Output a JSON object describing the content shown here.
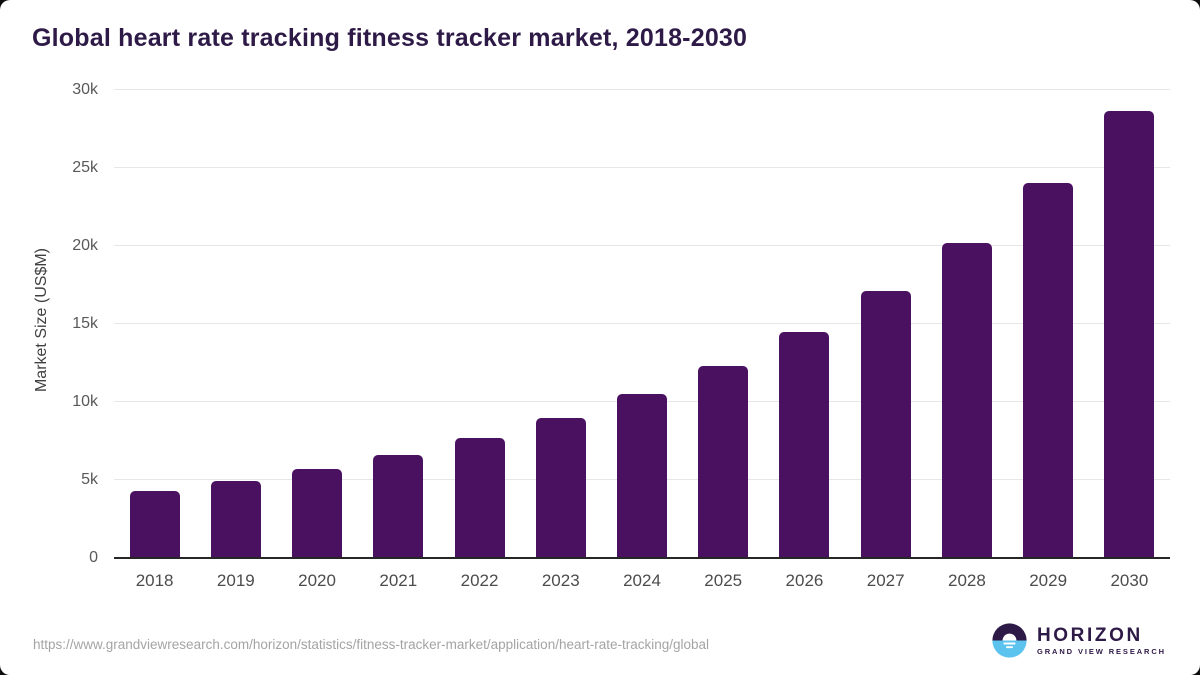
{
  "title": "Global heart rate tracking fitness tracker market, 2018-2030",
  "chart_data": {
    "type": "bar",
    "title": "Global heart rate tracking fitness tracker market, 2018-2030",
    "categories": [
      "2018",
      "2019",
      "2020",
      "2021",
      "2022",
      "2023",
      "2024",
      "2025",
      "2026",
      "2027",
      "2028",
      "2029",
      "2030"
    ],
    "values": [
      4300,
      4950,
      5700,
      6600,
      7700,
      9000,
      10500,
      12300,
      14500,
      17100,
      20200,
      24050,
      28650
    ],
    "xlabel": "",
    "ylabel": "Market Size (US$M)",
    "ylim": [
      0,
      30000
    ],
    "yticks": [
      0,
      5000,
      10000,
      15000,
      20000,
      25000,
      30000
    ],
    "ytick_labels": [
      "0",
      "5k",
      "10k",
      "15k",
      "20k",
      "25k",
      "30k"
    ],
    "grid": true,
    "legend": "none",
    "bar_color": "#4a1160"
  },
  "colors": {
    "bar": "#4a1160",
    "title_text": "#2e1a47",
    "axis_line": "#262626",
    "gridline": "#e7e7e7",
    "tick_text": "#595959",
    "logo_purple": "#2e1a47",
    "logo_blue": "#5cc3ee"
  },
  "footer": {
    "source_url": "https://www.grandviewresearch.com/horizon/statistics/fitness-tracker-market/application/heart-rate-tracking/global",
    "logo": {
      "brand": "HORIZON",
      "sub_brand": "GRAND VIEW RESEARCH",
      "icon": "horizon-sun-icon"
    }
  }
}
